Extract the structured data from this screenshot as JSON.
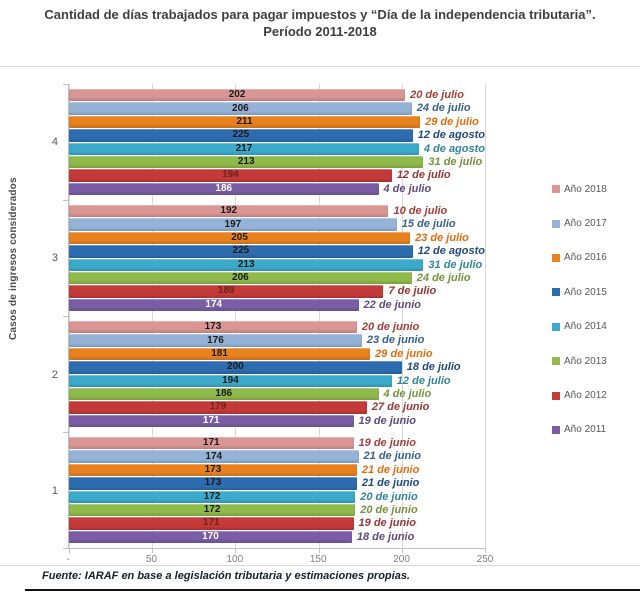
{
  "page": {
    "title_line1": "Cantidad de días trabajados para pagar impuestos y “Día de la independencia tributaria”.",
    "title_line2": "Período 2011-2018",
    "footer": "Fuente: IARAF en base a legislación tributaria y estimaciones propias."
  },
  "chart_data": {
    "type": "bar",
    "orientation": "horizontal",
    "title": "Cantidad de días trabajados para pagar impuestos y “Día de la independencia tributaria”. Período 2011-2018",
    "ylabel": "Casos de ingresos considerados",
    "xlim": [
      0,
      250
    ],
    "xticks": [
      {
        "label": "-",
        "value": 0
      },
      {
        "label": "50",
        "value": 50
      },
      {
        "label": "100",
        "value": 100
      },
      {
        "label": "150",
        "value": 150
      },
      {
        "label": "200",
        "value": 200
      },
      {
        "label": "250",
        "value": 250
      }
    ],
    "grid": true,
    "legend_position": "right",
    "categories": [
      "4",
      "3",
      "2",
      "1"
    ],
    "series": [
      {
        "name": "Año 2018",
        "color": "#d99694",
        "date_color": "#a23f38",
        "value_text_color": "#1a1a1a",
        "values": [
          202,
          192,
          173,
          171
        ],
        "dates": [
          "20 de julio",
          "10 de julio",
          "20 de junio",
          "19 de junio"
        ]
      },
      {
        "name": "Año 2017",
        "color": "#95b3d7",
        "date_color": "#38618c",
        "value_text_color": "#1a1a1a",
        "values": [
          206,
          197,
          176,
          174
        ],
        "dates": [
          "24 de julio",
          "15 de julio",
          "23 de junio",
          "21 de junio"
        ]
      },
      {
        "name": "Año 2016",
        "color": "#e8821f",
        "date_color": "#e36c0f",
        "value_text_color": "#1a1a1a",
        "values": [
          211,
          205,
          181,
          173
        ],
        "dates": [
          "29 de julio",
          "23 de julio",
          "29 de junio",
          "21 de junio"
        ]
      },
      {
        "name": "Año 2015",
        "color": "#2e6cb0",
        "date_color": "#1f497d",
        "value_text_color": "#1a1a1a",
        "values": [
          225,
          225,
          200,
          173
        ],
        "dates": [
          "12 de agosto",
          "12 de agosto",
          "18 de julio",
          "21 de junio"
        ]
      },
      {
        "name": "Año 2014",
        "color": "#3baacb",
        "date_color": "#31859b",
        "value_text_color": "#1a1a1a",
        "values": [
          217,
          213,
          194,
          172
        ],
        "dates": [
          "4 de agosto",
          "31 de julio",
          "12 de julio",
          "20 de junio"
        ]
      },
      {
        "name": "Año 2013",
        "color": "#90ba4c",
        "date_color": "#76923c",
        "value_text_color": "#1a1a1a",
        "values": [
          213,
          206,
          186,
          172
        ],
        "dates": [
          "31 de julio",
          "24 de julio",
          "4 de julio",
          "20 de junio"
        ]
      },
      {
        "name": "Año 2012",
        "color": "#c43a38",
        "date_color": "#953735",
        "value_text_color": "#6e2120",
        "values": [
          194,
          189,
          179,
          171
        ],
        "dates": [
          "12 de julio",
          "7 de julio",
          "27 de junio",
          "19 de junio"
        ]
      },
      {
        "name": "Año 2011",
        "color": "#7a5da5",
        "date_color": "#604a7b",
        "value_text_color": "#ffffff",
        "values": [
          186,
          174,
          171,
          170
        ],
        "dates": [
          "4 de julio",
          "22 de junio",
          "19 de junio",
          "18 de junio"
        ]
      }
    ]
  }
}
